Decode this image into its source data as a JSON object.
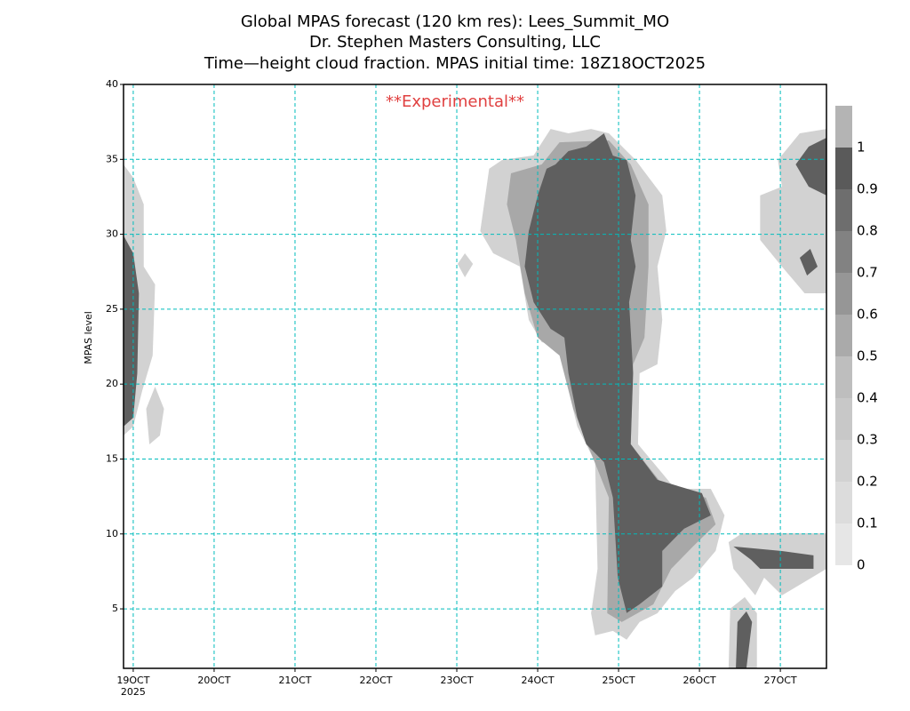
{
  "chart_data": {
    "type": "contour",
    "title": [
      "Global MPAS forecast (120 km res): Lees_Summit_MO",
      "Dr. Stephen Masters Consulting, LLC",
      "Time—height cloud fraction.   MPAS initial time: 18Z18OCT2025"
    ],
    "annotation": "**Experimental**",
    "ylabel": "MPAS level",
    "xlim": [
      18.88,
      27.57
    ],
    "ylim": [
      1.03,
      40
    ],
    "xticks": [
      {
        "value": 19,
        "label": "19OCT"
      },
      {
        "value": 20,
        "label": "20OCT"
      },
      {
        "value": 21,
        "label": "21OCT"
      },
      {
        "value": 22,
        "label": "22OCT"
      },
      {
        "value": 23,
        "label": "23OCT"
      },
      {
        "value": 24,
        "label": "24OCT"
      },
      {
        "value": 25,
        "label": "25OCT"
      },
      {
        "value": 26,
        "label": "26OCT"
      },
      {
        "value": 27,
        "label": "27OCT"
      }
    ],
    "x_sublabel": "2025",
    "yticks": [
      5,
      10,
      15,
      20,
      25,
      30,
      35,
      40
    ],
    "grid": true,
    "grid_color": "#00bcbc",
    "colorbar": {
      "levels": [
        0,
        0.1,
        0.2,
        0.3,
        0.4,
        0.5,
        0.6,
        0.7,
        0.8,
        0.9,
        1
      ],
      "colors": [
        "#e6e6e6",
        "#dcdcdc",
        "#d2d2d2",
        "#c8c8c8",
        "#bebebe",
        "#aaaaaa",
        "#969696",
        "#828282",
        "#6e6e6e",
        "#5a5a5a",
        "#b4b4b4"
      ]
    },
    "contours": [
      {
        "level": 0.1,
        "color": "#d2d2d2",
        "polygons": [
          [
            [
              18.88,
              34.66
            ],
            [
              19.0,
              33.77
            ],
            [
              19.13,
              31.99
            ],
            [
              19.13,
              27.84
            ],
            [
              19.27,
              26.65
            ],
            [
              19.24,
              21.91
            ],
            [
              19.11,
              19.54
            ],
            [
              19.0,
              17.17
            ],
            [
              18.88,
              16.57
            ]
          ],
          [
            [
              19.27,
              19.83
            ],
            [
              19.38,
              18.35
            ],
            [
              19.33,
              16.57
            ],
            [
              19.2,
              15.98
            ],
            [
              19.16,
              18.35
            ]
          ],
          [
            [
              26.97,
              34.96
            ],
            [
              27.24,
              36.74
            ],
            [
              27.57,
              37.03
            ],
            [
              27.57,
              26.06
            ],
            [
              27.3,
              26.06
            ],
            [
              27.02,
              27.84
            ],
            [
              26.75,
              29.62
            ],
            [
              26.75,
              32.59
            ],
            [
              27.02,
              33.18
            ]
          ],
          [
            [
              26.36,
              9.45
            ],
            [
              26.53,
              10.05
            ],
            [
              27.57,
              10.05
            ],
            [
              27.57,
              7.67
            ],
            [
              27.02,
              5.9
            ],
            [
              26.8,
              7.08
            ],
            [
              26.69,
              5.9
            ],
            [
              26.42,
              7.67
            ]
          ],
          [
            [
              26.36,
              1.03
            ],
            [
              26.38,
              5.01
            ],
            [
              26.56,
              5.78
            ],
            [
              26.71,
              4.71
            ],
            [
              26.71,
              1.03
            ]
          ],
          [
            [
              23.01,
              28.02
            ],
            [
              23.1,
              28.73
            ],
            [
              23.2,
              28.02
            ],
            [
              23.1,
              27.13
            ]
          ],
          [
            [
              23.29,
              30.21
            ],
            [
              23.4,
              34.37
            ],
            [
              23.56,
              34.96
            ],
            [
              23.95,
              35.26
            ],
            [
              24.16,
              37.03
            ],
            [
              24.38,
              36.74
            ],
            [
              24.66,
              37.03
            ],
            [
              24.88,
              36.74
            ],
            [
              25.21,
              34.96
            ],
            [
              25.54,
              32.59
            ],
            [
              25.59,
              30.21
            ],
            [
              25.48,
              27.85
            ],
            [
              25.54,
              24.28
            ],
            [
              25.48,
              21.32
            ],
            [
              25.26,
              20.72
            ],
            [
              25.24,
              15.99
            ],
            [
              25.7,
              13.01
            ],
            [
              26.14,
              13.01
            ],
            [
              26.31,
              11.24
            ],
            [
              26.2,
              8.87
            ],
            [
              25.92,
              7.08
            ],
            [
              25.7,
              6.19
            ],
            [
              25.48,
              4.71
            ],
            [
              25.26,
              4.12
            ],
            [
              25.1,
              2.94
            ],
            [
              24.93,
              3.53
            ],
            [
              24.71,
              3.23
            ],
            [
              24.66,
              4.71
            ],
            [
              24.74,
              7.67
            ],
            [
              24.71,
              14.79
            ],
            [
              24.49,
              17.16
            ],
            [
              24.33,
              20.72
            ],
            [
              24.27,
              22.5
            ],
            [
              24.05,
              22.8
            ],
            [
              23.89,
              24.28
            ],
            [
              23.78,
              27.85
            ],
            [
              23.45,
              28.73
            ]
          ]
        ]
      },
      {
        "level": 0.4,
        "color": "#a8a8a8",
        "polygons": [
          [
            [
              23.67,
              34.07
            ],
            [
              24.05,
              34.66
            ],
            [
              24.27,
              36.14
            ],
            [
              24.88,
              36.26
            ],
            [
              25.15,
              34.66
            ],
            [
              25.37,
              31.99
            ],
            [
              25.37,
              27.85
            ],
            [
              25.32,
              23.1
            ],
            [
              25.18,
              21.32
            ],
            [
              25.15,
              15.99
            ],
            [
              25.54,
              13.31
            ],
            [
              26.08,
              12.42
            ],
            [
              26.2,
              10.64
            ],
            [
              25.92,
              9.16
            ],
            [
              25.65,
              7.67
            ],
            [
              25.43,
              5.3
            ],
            [
              25.04,
              4.12
            ],
            [
              24.86,
              4.71
            ],
            [
              24.88,
              12.42
            ],
            [
              24.66,
              15.39
            ],
            [
              24.44,
              18.35
            ],
            [
              24.27,
              21.91
            ],
            [
              24.0,
              23.1
            ],
            [
              23.84,
              26.06
            ],
            [
              23.73,
              29.62
            ],
            [
              23.62,
              31.99
            ]
          ]
        ]
      },
      {
        "level": 0.8,
        "color": "#5f5f5f",
        "polygons": [
          [
            [
              18.88,
              29.92
            ],
            [
              19.0,
              28.73
            ],
            [
              19.07,
              26.06
            ],
            [
              19.05,
              20.72
            ],
            [
              19.0,
              17.76
            ],
            [
              18.88,
              17.17
            ]
          ],
          [
            [
              27.19,
              34.66
            ],
            [
              27.35,
              35.85
            ],
            [
              27.57,
              36.44
            ],
            [
              27.57,
              32.59
            ],
            [
              27.35,
              33.18
            ]
          ],
          [
            [
              27.24,
              28.43
            ],
            [
              27.37,
              29.03
            ],
            [
              27.46,
              27.84
            ],
            [
              27.33,
              27.25
            ]
          ],
          [
            [
              26.42,
              9.16
            ],
            [
              27.02,
              8.86
            ],
            [
              27.41,
              8.57
            ],
            [
              27.41,
              7.67
            ],
            [
              27.08,
              7.67
            ],
            [
              26.75,
              7.67
            ],
            [
              26.64,
              8.27
            ]
          ],
          [
            [
              26.45,
              1.03
            ],
            [
              26.47,
              4.12
            ],
            [
              26.58,
              4.83
            ],
            [
              26.65,
              4.12
            ],
            [
              26.58,
              1.03
            ]
          ],
          [
            [
              24.22,
              34.66
            ],
            [
              24.38,
              35.55
            ],
            [
              24.6,
              35.85
            ],
            [
              24.82,
              36.74
            ],
            [
              24.93,
              35.25
            ],
            [
              25.1,
              34.96
            ],
            [
              25.21,
              32.59
            ],
            [
              25.15,
              29.63
            ],
            [
              25.21,
              27.85
            ],
            [
              25.13,
              25.47
            ],
            [
              25.18,
              20.73
            ],
            [
              25.15,
              15.99
            ],
            [
              25.48,
              13.61
            ],
            [
              26.03,
              12.72
            ],
            [
              26.14,
              11.24
            ],
            [
              25.81,
              10.35
            ],
            [
              25.54,
              8.87
            ],
            [
              25.54,
              6.49
            ],
            [
              25.26,
              5.31
            ],
            [
              25.1,
              4.72
            ],
            [
              24.99,
              7.08
            ],
            [
              24.93,
              12.42
            ],
            [
              24.82,
              14.79
            ],
            [
              24.6,
              15.99
            ],
            [
              24.49,
              17.76
            ],
            [
              24.38,
              20.73
            ],
            [
              24.33,
              23.1
            ],
            [
              24.16,
              23.69
            ],
            [
              23.95,
              25.47
            ],
            [
              23.84,
              27.85
            ],
            [
              23.89,
              30.21
            ],
            [
              24.0,
              32.59
            ],
            [
              24.11,
              34.37
            ]
          ]
        ]
      }
    ]
  }
}
